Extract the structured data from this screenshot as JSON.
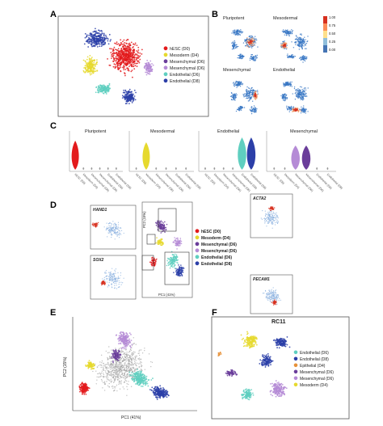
{
  "panels": {
    "A": {
      "label": "A",
      "legend": [
        {
          "text": "hESC (D0)",
          "color": "#e31a1c"
        },
        {
          "text": "Mesoderm (D4)",
          "color": "#e6d92e"
        },
        {
          "text": "Mesenchymal (D6)",
          "color": "#6a3d9a"
        },
        {
          "text": "Mesenchymal (D6)",
          "color": "#b58bd6"
        },
        {
          "text": "Endothelial (D6)",
          "color": "#5fcfc0"
        },
        {
          "text": "Endothelial (D8)",
          "color": "#2c3fa8"
        }
      ]
    },
    "B": {
      "label": "B",
      "maps": [
        "Pluripotent",
        "Mesodermal",
        "Mesenchymal",
        "Endothelial"
      ],
      "colorbar_ticks": [
        "1.00",
        "0.75",
        "0.50",
        "0.25",
        "0.00"
      ]
    },
    "C": {
      "label": "C",
      "groups": [
        "Pluripotent",
        "Mesodermal",
        "Endothelial",
        "Mesenchymal"
      ],
      "xticks": [
        "hESC (D0)",
        "Mesoderm (D4)",
        "Mesenchymal (D6)",
        "Mesenchymal (D6)",
        "Endothelial (D6)",
        "Endothelial (D8)"
      ]
    },
    "D": {
      "label": "D",
      "genes": [
        "HAND1",
        "SOX2",
        "ACTA2",
        "PECAM1"
      ],
      "xlabel": "PC1 (41%)",
      "ylabel": "PC2 (15%)",
      "legend": [
        {
          "text": "hESC (D0)",
          "color": "#e31a1c"
        },
        {
          "text": "Mesoderm (D4)",
          "color": "#e6d92e"
        },
        {
          "text": "Mesenchymal (D6)",
          "color": "#6a3d9a"
        },
        {
          "text": "Mesenchymal (D6)",
          "color": "#b58bd6"
        },
        {
          "text": "Endothelial (D6)",
          "color": "#5fcfc0"
        },
        {
          "text": "Endothelial (D8)",
          "color": "#2c3fa8"
        }
      ]
    },
    "E": {
      "label": "E",
      "xlabel": "PC1 (41%)",
      "ylabel": "PC2 (15%)"
    },
    "F": {
      "label": "F",
      "title": "RC11",
      "legend": [
        {
          "text": "Endothelial (D6)",
          "color": "#5fcfc0"
        },
        {
          "text": "Endothelial (D8)",
          "color": "#2c3fa8"
        },
        {
          "text": "Epithelial (D4)",
          "color": "#e69138"
        },
        {
          "text": "Mesenchymal (D6)",
          "color": "#6a3d9a"
        },
        {
          "text": "Mesenchymal (D6)",
          "color": "#b58bd6"
        },
        {
          "text": "Mesoderm (D4)",
          "color": "#e6d92e"
        }
      ]
    }
  },
  "colors": {
    "hesc": "#e31a1c",
    "mesoderm": "#e6d92e",
    "mesenchymal_dark": "#6a3d9a",
    "mesenchymal_light": "#b58bd6",
    "endo_d6": "#5fcfc0",
    "endo_d8": "#2c3fa8",
    "epithelial": "#e69138",
    "map_low": "#3a78c4",
    "map_high": "#d7301f"
  }
}
